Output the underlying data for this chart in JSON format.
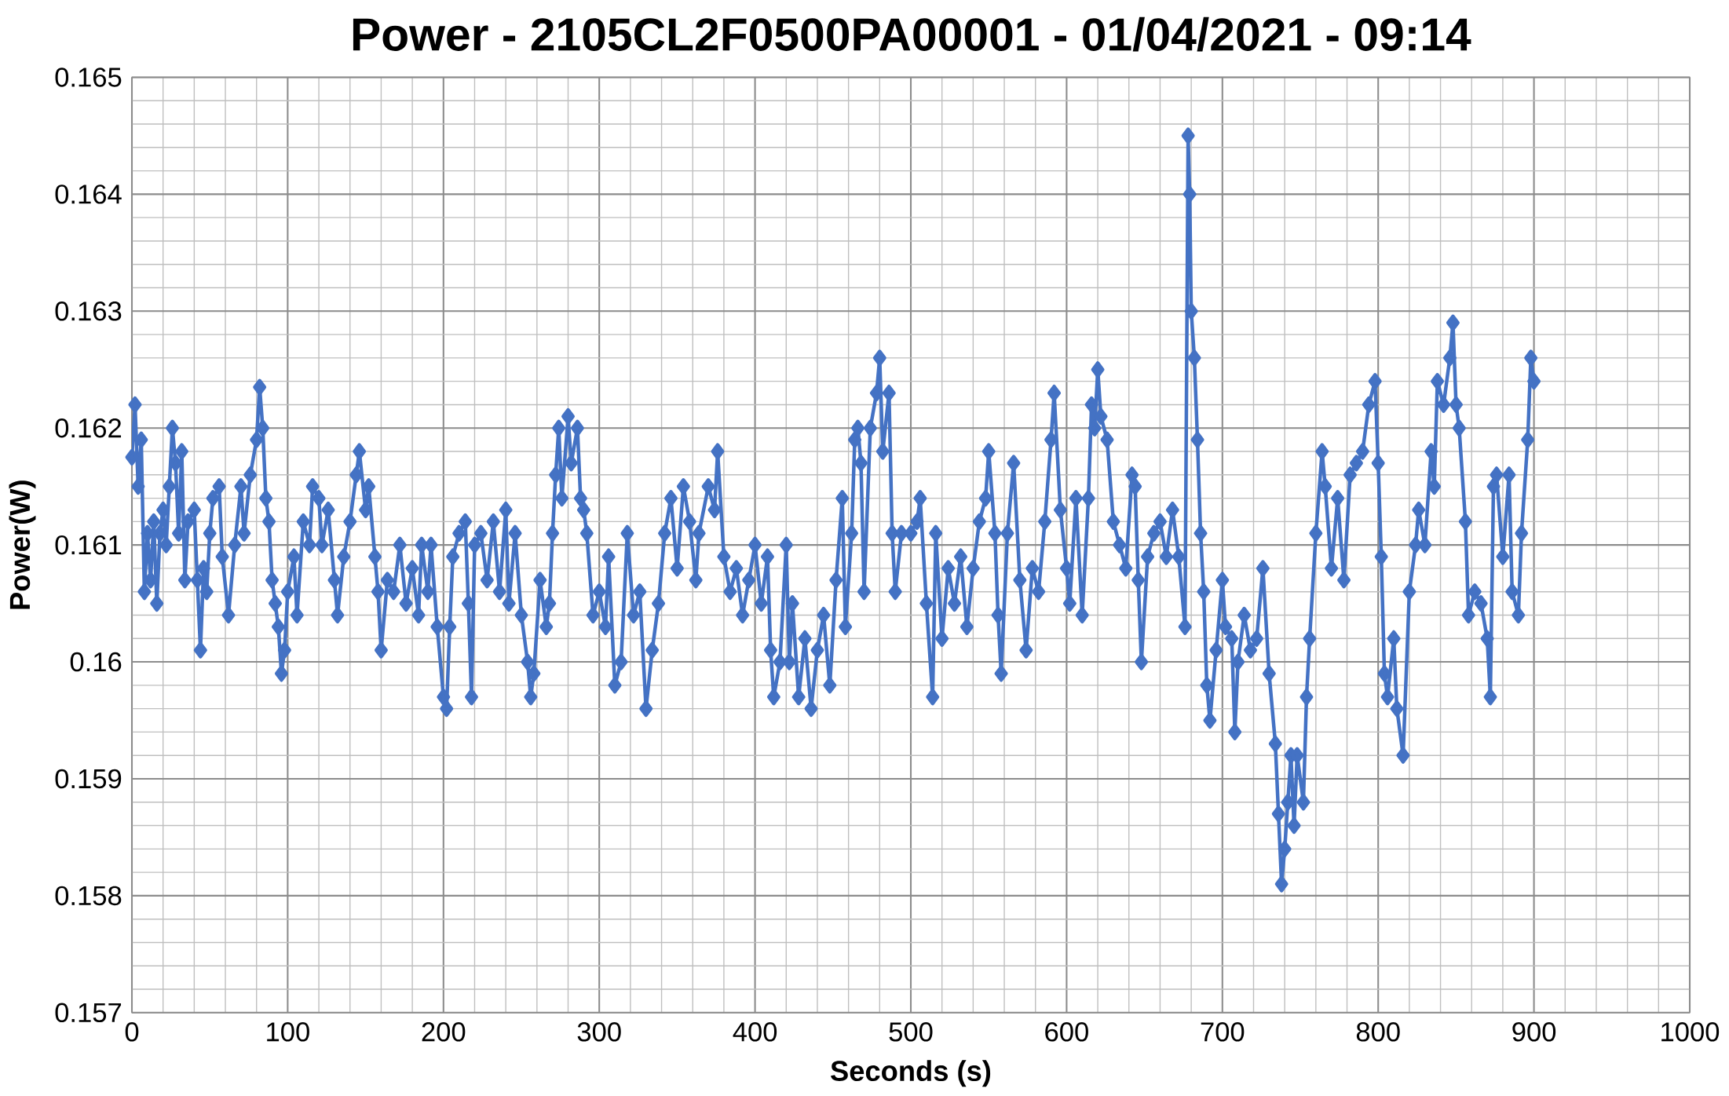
{
  "chart_data": {
    "type": "line",
    "title": "Power - 2105CL2F0500PA00001 - 01/04/2021 - 09:14",
    "xlabel": "Seconds (s)",
    "ylabel": "Power(W)",
    "xlim": [
      0,
      1000
    ],
    "xticks": [
      0,
      100,
      200,
      300,
      400,
      500,
      600,
      700,
      800,
      900,
      1000
    ],
    "ylim": [
      0.157,
      0.165
    ],
    "yticks": [
      0.157,
      0.158,
      0.159,
      0.16,
      0.161,
      0.162,
      0.163,
      0.164,
      0.165
    ],
    "grid": true,
    "marker": "diamond",
    "line_style": "solid",
    "x": [
      0,
      2,
      4,
      6,
      8,
      10,
      12,
      14,
      16,
      18,
      20,
      22,
      24,
      26,
      28,
      30,
      32,
      34,
      36,
      40,
      42,
      44,
      46,
      48,
      50,
      52,
      56,
      58,
      62,
      66,
      70,
      72,
      76,
      80,
      82,
      84,
      86,
      88,
      90,
      92,
      94,
      96,
      98,
      100,
      104,
      106,
      110,
      114,
      116,
      120,
      122,
      126,
      130,
      132,
      136,
      140,
      144,
      146,
      150,
      152,
      156,
      158,
      160,
      164,
      168,
      172,
      176,
      180,
      184,
      186,
      190,
      192,
      196,
      200,
      202,
      204,
      206,
      210,
      214,
      216,
      218,
      220,
      224,
      228,
      232,
      236,
      240,
      242,
      246,
      250,
      254,
      256,
      258,
      262,
      266,
      268,
      270,
      272,
      274,
      276,
      280,
      282,
      286,
      288,
      290,
      292,
      296,
      300,
      304,
      306,
      310,
      314,
      318,
      322,
      326,
      330,
      334,
      338,
      342,
      346,
      350,
      354,
      358,
      362,
      364,
      370,
      374,
      376,
      380,
      384,
      388,
      392,
      396,
      400,
      404,
      408,
      410,
      412,
      416,
      420,
      422,
      424,
      428,
      432,
      436,
      440,
      444,
      448,
      452,
      456,
      458,
      462,
      464,
      466,
      468,
      470,
      474,
      478,
      480,
      482,
      486,
      488,
      490,
      494,
      500,
      504,
      506,
      510,
      514,
      516,
      520,
      524,
      528,
      532,
      536,
      540,
      544,
      548,
      550,
      554,
      556,
      558,
      562,
      566,
      570,
      574,
      578,
      582,
      586,
      590,
      592,
      596,
      600,
      602,
      606,
      610,
      614,
      616,
      618,
      620,
      622,
      626,
      630,
      634,
      638,
      642,
      644,
      646,
      648,
      652,
      656,
      660,
      664,
      668,
      672,
      676,
      678,
      679,
      680,
      682,
      684,
      686,
      688,
      690,
      692,
      696,
      700,
      702,
      706,
      708,
      710,
      714,
      718,
      722,
      726,
      730,
      734,
      736,
      738,
      740,
      742,
      744,
      746,
      748,
      752,
      754,
      756,
      760,
      764,
      766,
      770,
      774,
      778,
      782,
      786,
      790,
      794,
      798,
      800,
      802,
      804,
      806,
      810,
      812,
      816,
      820,
      824,
      826,
      830,
      834,
      836,
      838,
      842,
      846,
      848,
      850,
      852,
      856,
      858,
      862,
      866,
      870,
      872,
      874,
      876,
      880,
      884,
      886,
      890,
      892,
      896,
      898,
      900
    ],
    "series": [
      {
        "color": "#4472c4",
        "values": [
          0.16175,
          0.1622,
          0.1615,
          0.1619,
          0.1606,
          0.1611,
          0.1607,
          0.1612,
          0.1605,
          0.1611,
          0.1613,
          0.161,
          0.1615,
          0.162,
          0.1617,
          0.1611,
          0.1618,
          0.1607,
          0.1612,
          0.1613,
          0.1607,
          0.1601,
          0.1608,
          0.1606,
          0.1611,
          0.1614,
          0.1615,
          0.1609,
          0.1604,
          0.161,
          0.1615,
          0.1611,
          0.1616,
          0.1619,
          0.16235,
          0.162,
          0.1614,
          0.1612,
          0.1607,
          0.1605,
          0.1603,
          0.1599,
          0.1601,
          0.1606,
          0.1609,
          0.1604,
          0.1612,
          0.161,
          0.1615,
          0.1614,
          0.161,
          0.1613,
          0.1607,
          0.1604,
          0.1609,
          0.1612,
          0.1616,
          0.1618,
          0.1613,
          0.1615,
          0.1609,
          0.1606,
          0.1601,
          0.1607,
          0.1606,
          0.161,
          0.1605,
          0.1608,
          0.1604,
          0.161,
          0.1606,
          0.161,
          0.1603,
          0.1597,
          0.1596,
          0.1603,
          0.1609,
          0.1611,
          0.1612,
          0.1605,
          0.1597,
          0.161,
          0.1611,
          0.1607,
          0.1612,
          0.1606,
          0.1613,
          0.1605,
          0.1611,
          0.1604,
          0.16,
          0.1597,
          0.1599,
          0.1607,
          0.1603,
          0.1605,
          0.1611,
          0.1616,
          0.162,
          0.1614,
          0.1621,
          0.1617,
          0.162,
          0.1614,
          0.1613,
          0.1611,
          0.1604,
          0.1606,
          0.1603,
          0.1609,
          0.1598,
          0.16,
          0.1611,
          0.1604,
          0.1606,
          0.1596,
          0.1601,
          0.1605,
          0.1611,
          0.1614,
          0.1608,
          0.1615,
          0.1612,
          0.1607,
          0.1611,
          0.1615,
          0.1613,
          0.1618,
          0.1609,
          0.1606,
          0.1608,
          0.1604,
          0.1607,
          0.161,
          0.1605,
          0.1609,
          0.1601,
          0.1597,
          0.16,
          0.161,
          0.16,
          0.1605,
          0.1597,
          0.1602,
          0.1596,
          0.1601,
          0.1604,
          0.1598,
          0.1607,
          0.1614,
          0.1603,
          0.1611,
          0.1619,
          0.162,
          0.1617,
          0.1606,
          0.162,
          0.1623,
          0.1626,
          0.1618,
          0.1623,
          0.1611,
          0.1606,
          0.1611,
          0.1611,
          0.1612,
          0.1614,
          0.1605,
          0.1597,
          0.1611,
          0.1602,
          0.1608,
          0.1605,
          0.1609,
          0.1603,
          0.1608,
          0.1612,
          0.1614,
          0.1618,
          0.1611,
          0.1604,
          0.1599,
          0.1611,
          0.1617,
          0.1607,
          0.1601,
          0.1608,
          0.1606,
          0.1612,
          0.1619,
          0.1623,
          0.1613,
          0.1608,
          0.1605,
          0.1614,
          0.1604,
          0.1614,
          0.1622,
          0.162,
          0.1625,
          0.1621,
          0.1619,
          0.1612,
          0.161,
          0.1608,
          0.1616,
          0.1615,
          0.1607,
          0.16,
          0.1609,
          0.1611,
          0.1612,
          0.1609,
          0.1613,
          0.1609,
          0.1603,
          0.1645,
          0.164,
          0.163,
          0.1626,
          0.1619,
          0.1611,
          0.1606,
          0.1598,
          0.1595,
          0.1601,
          0.1607,
          0.1603,
          0.1602,
          0.1594,
          0.16,
          0.1604,
          0.1601,
          0.1602,
          0.1608,
          0.1599,
          0.1593,
          0.1587,
          0.1581,
          0.1584,
          0.1588,
          0.1592,
          0.1586,
          0.1592,
          0.1588,
          0.1597,
          0.1602,
          0.1611,
          0.1618,
          0.1615,
          0.1608,
          0.1614,
          0.1607,
          0.1616,
          0.1617,
          0.1618,
          0.1622,
          0.1624,
          0.1617,
          0.1609,
          0.1599,
          0.1597,
          0.1602,
          0.1596,
          0.1592,
          0.1606,
          0.161,
          0.1613,
          0.161,
          0.1618,
          0.1615,
          0.1624,
          0.1622,
          0.1626,
          0.1629,
          0.1622,
          0.162,
          0.1612,
          0.1604,
          0.1606,
          0.1605,
          0.1602,
          0.1597,
          0.1615,
          0.1616,
          0.1609,
          0.1616,
          0.1606,
          0.1604,
          0.1611,
          0.1619,
          0.1626,
          0.1624
        ]
      }
    ]
  }
}
